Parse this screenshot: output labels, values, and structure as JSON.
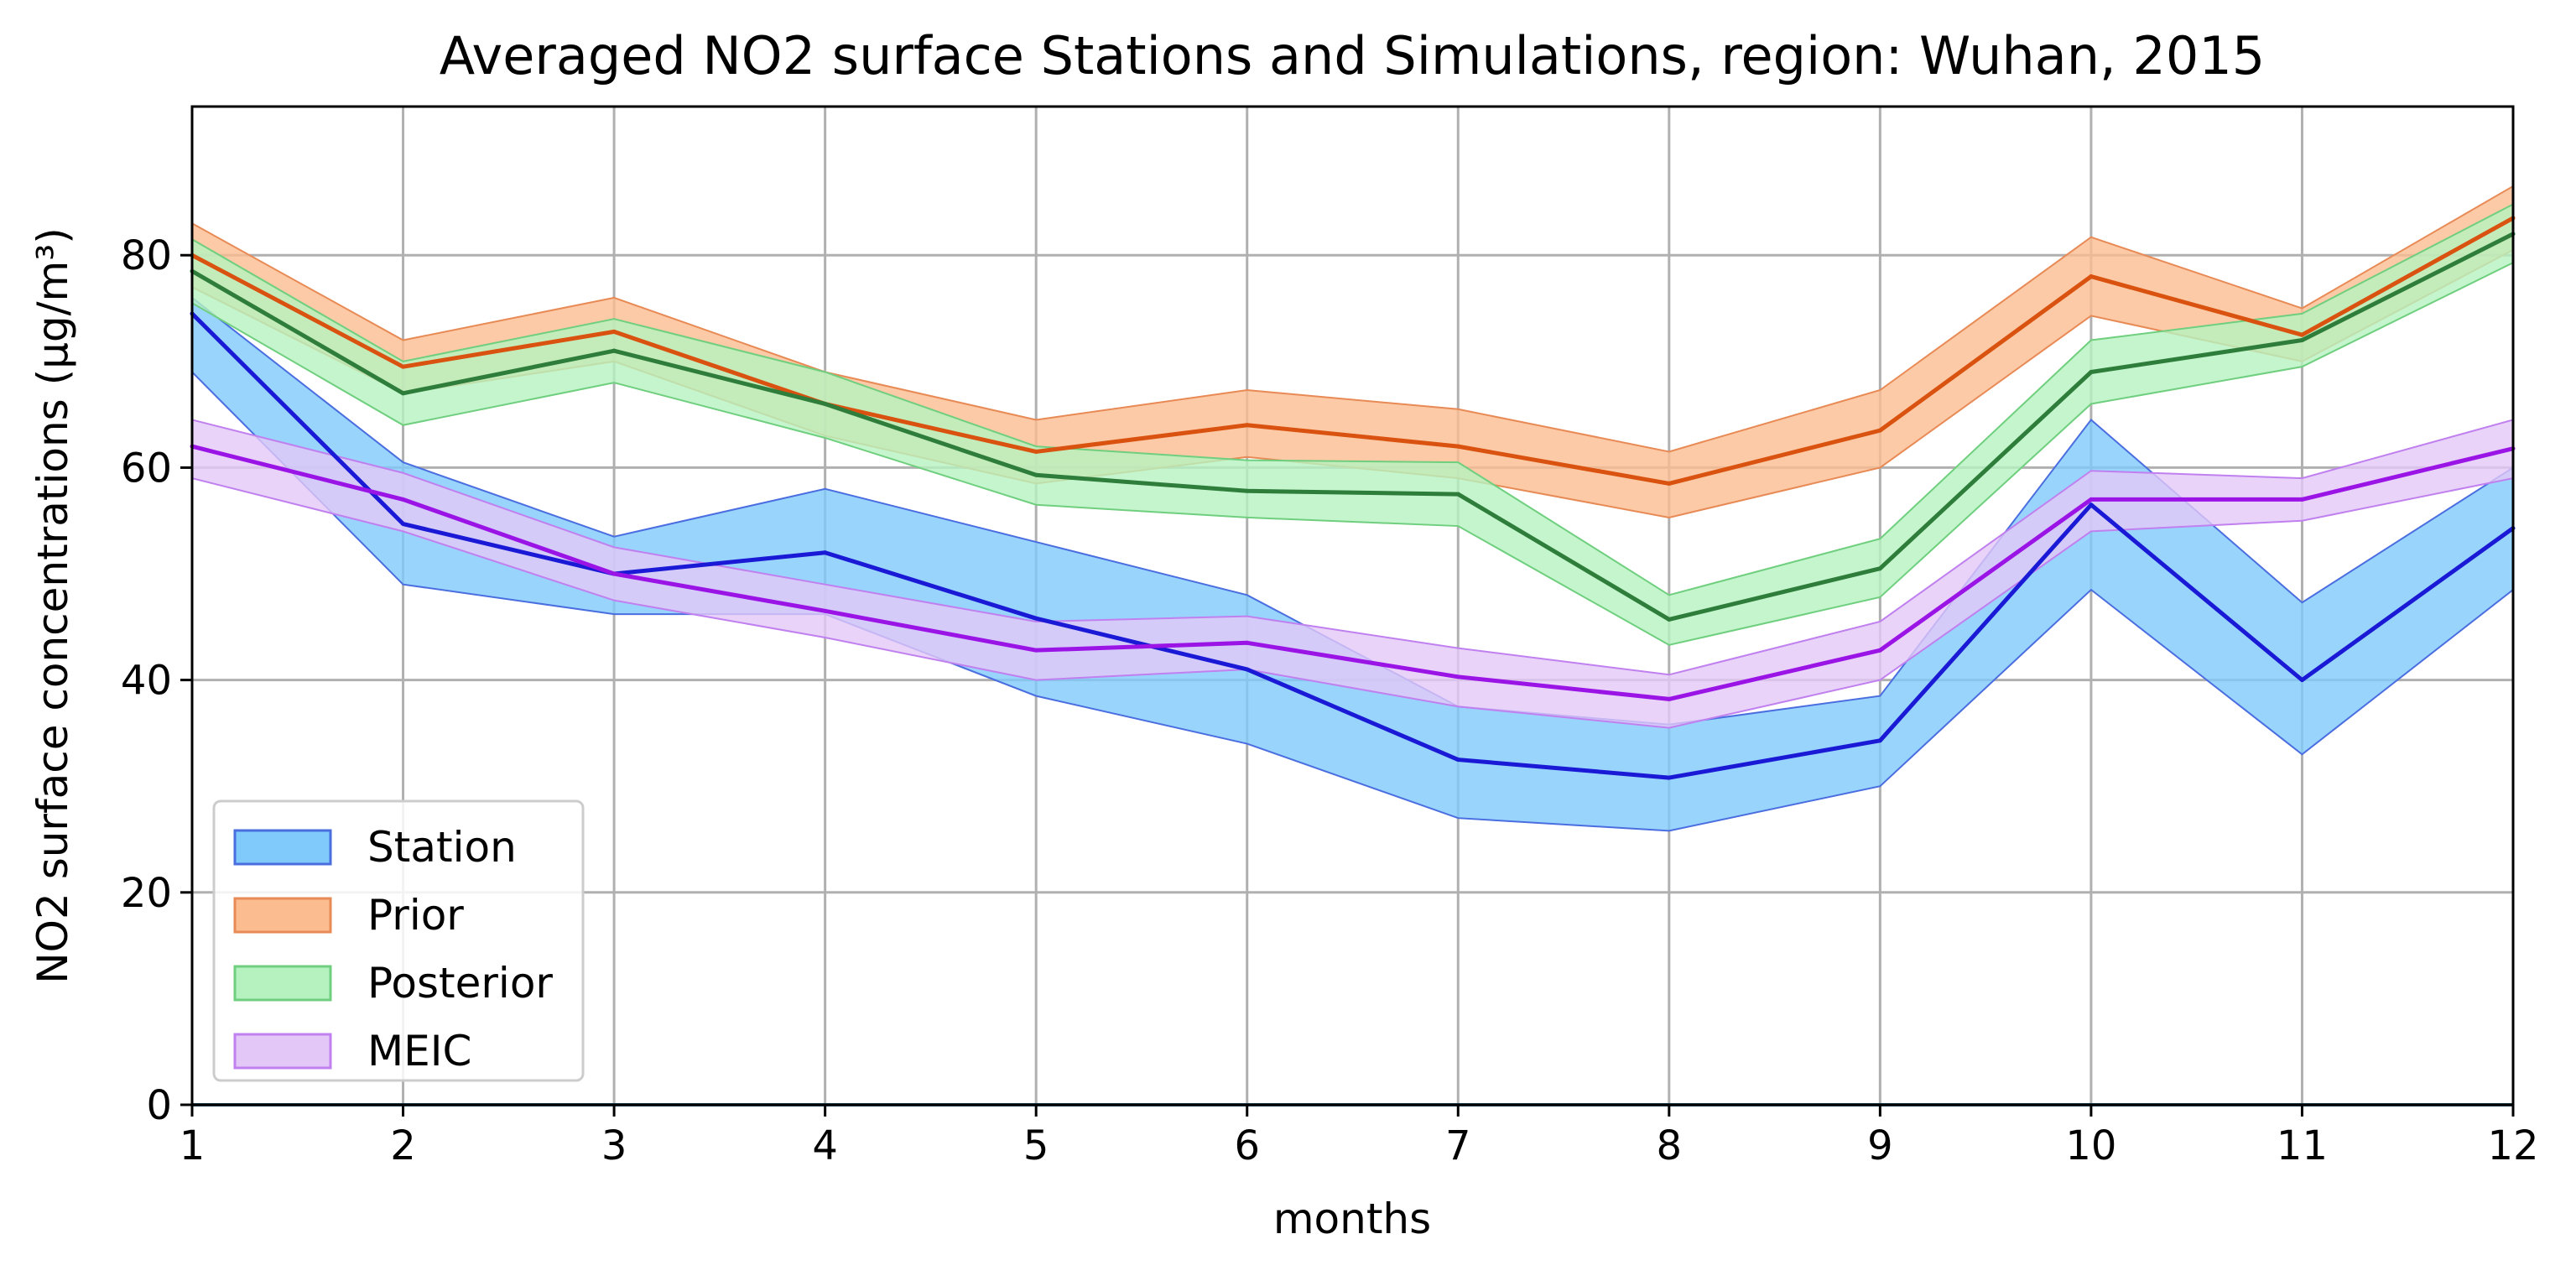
{
  "chart_data": {
    "type": "line",
    "title": "Averaged NO2 surface Stations and Simulations, region: Wuhan, 2015",
    "xlabel": "months",
    "ylabel": "NO2 surface concentrations (µg/m³)",
    "x": [
      1,
      2,
      3,
      4,
      5,
      6,
      7,
      8,
      9,
      10,
      11,
      12
    ],
    "xlim": [
      1,
      12
    ],
    "ylim": [
      0,
      94
    ],
    "xticks": [
      "1",
      "2",
      "3",
      "4",
      "5",
      "6",
      "7",
      "8",
      "9",
      "10",
      "11",
      "12"
    ],
    "yticks": [
      "0",
      "20",
      "40",
      "60",
      "80"
    ],
    "grid": true,
    "legend_position": "lower-left",
    "series": [
      {
        "name": "Station",
        "line_color": "#1a1ad6",
        "fill_color": "#7fc9fb",
        "edge_color": "#4a6ee0",
        "values": [
          74.5,
          54.7,
          50.0,
          52.0,
          45.8,
          41.0,
          32.5,
          30.8,
          34.3,
          56.5,
          40.0,
          54.3
        ],
        "lower": [
          69.0,
          49.0,
          46.2,
          46.2,
          38.5,
          34.0,
          27.0,
          25.8,
          30.0,
          48.5,
          33.0,
          48.5
        ],
        "upper": [
          76.0,
          60.5,
          53.5,
          58.0,
          53.0,
          48.0,
          37.5,
          35.8,
          38.5,
          64.5,
          47.3,
          60.0
        ]
      },
      {
        "name": "Prior",
        "line_color": "#d9520f",
        "fill_color": "#fbbd90",
        "edge_color": "#e88a55",
        "values": [
          80.0,
          69.5,
          72.8,
          66.0,
          61.5,
          64.0,
          62.0,
          58.5,
          63.5,
          78.0,
          72.5,
          83.5
        ],
        "lower": [
          77.0,
          67.0,
          70.0,
          63.0,
          58.5,
          61.0,
          59.0,
          55.3,
          60.0,
          74.3,
          70.0,
          80.5
        ],
        "upper": [
          83.0,
          72.0,
          76.0,
          69.0,
          64.5,
          67.3,
          65.5,
          61.5,
          67.3,
          81.7,
          75.0,
          86.5
        ]
      },
      {
        "name": "Posterior",
        "line_color": "#2e7d3b",
        "fill_color": "#b5f2bf",
        "edge_color": "#6fcf7f",
        "values": [
          78.5,
          67.0,
          71.0,
          66.0,
          59.3,
          57.8,
          57.5,
          45.7,
          50.5,
          69.0,
          72.0,
          82.0
        ],
        "lower": [
          75.5,
          64.0,
          68.0,
          62.8,
          56.5,
          55.3,
          54.5,
          43.3,
          47.8,
          66.0,
          69.5,
          79.3
        ],
        "upper": [
          81.5,
          70.0,
          74.0,
          69.0,
          62.0,
          60.7,
          60.5,
          48.0,
          53.3,
          72.0,
          74.5,
          84.8
        ]
      },
      {
        "name": "MEIC",
        "line_color": "#9a14e6",
        "fill_color": "#e3c8f7",
        "edge_color": "#c080ef",
        "values": [
          62.0,
          57.0,
          50.0,
          46.5,
          42.8,
          43.5,
          40.3,
          38.2,
          42.8,
          57.0,
          57.0,
          61.8
        ],
        "lower": [
          59.0,
          54.0,
          47.5,
          44.0,
          40.0,
          41.0,
          37.5,
          35.5,
          40.0,
          54.0,
          55.0,
          59.0
        ],
        "upper": [
          64.5,
          59.5,
          52.5,
          49.0,
          45.5,
          46.0,
          43.0,
          40.5,
          45.5,
          59.7,
          59.0,
          64.5
        ]
      }
    ]
  }
}
